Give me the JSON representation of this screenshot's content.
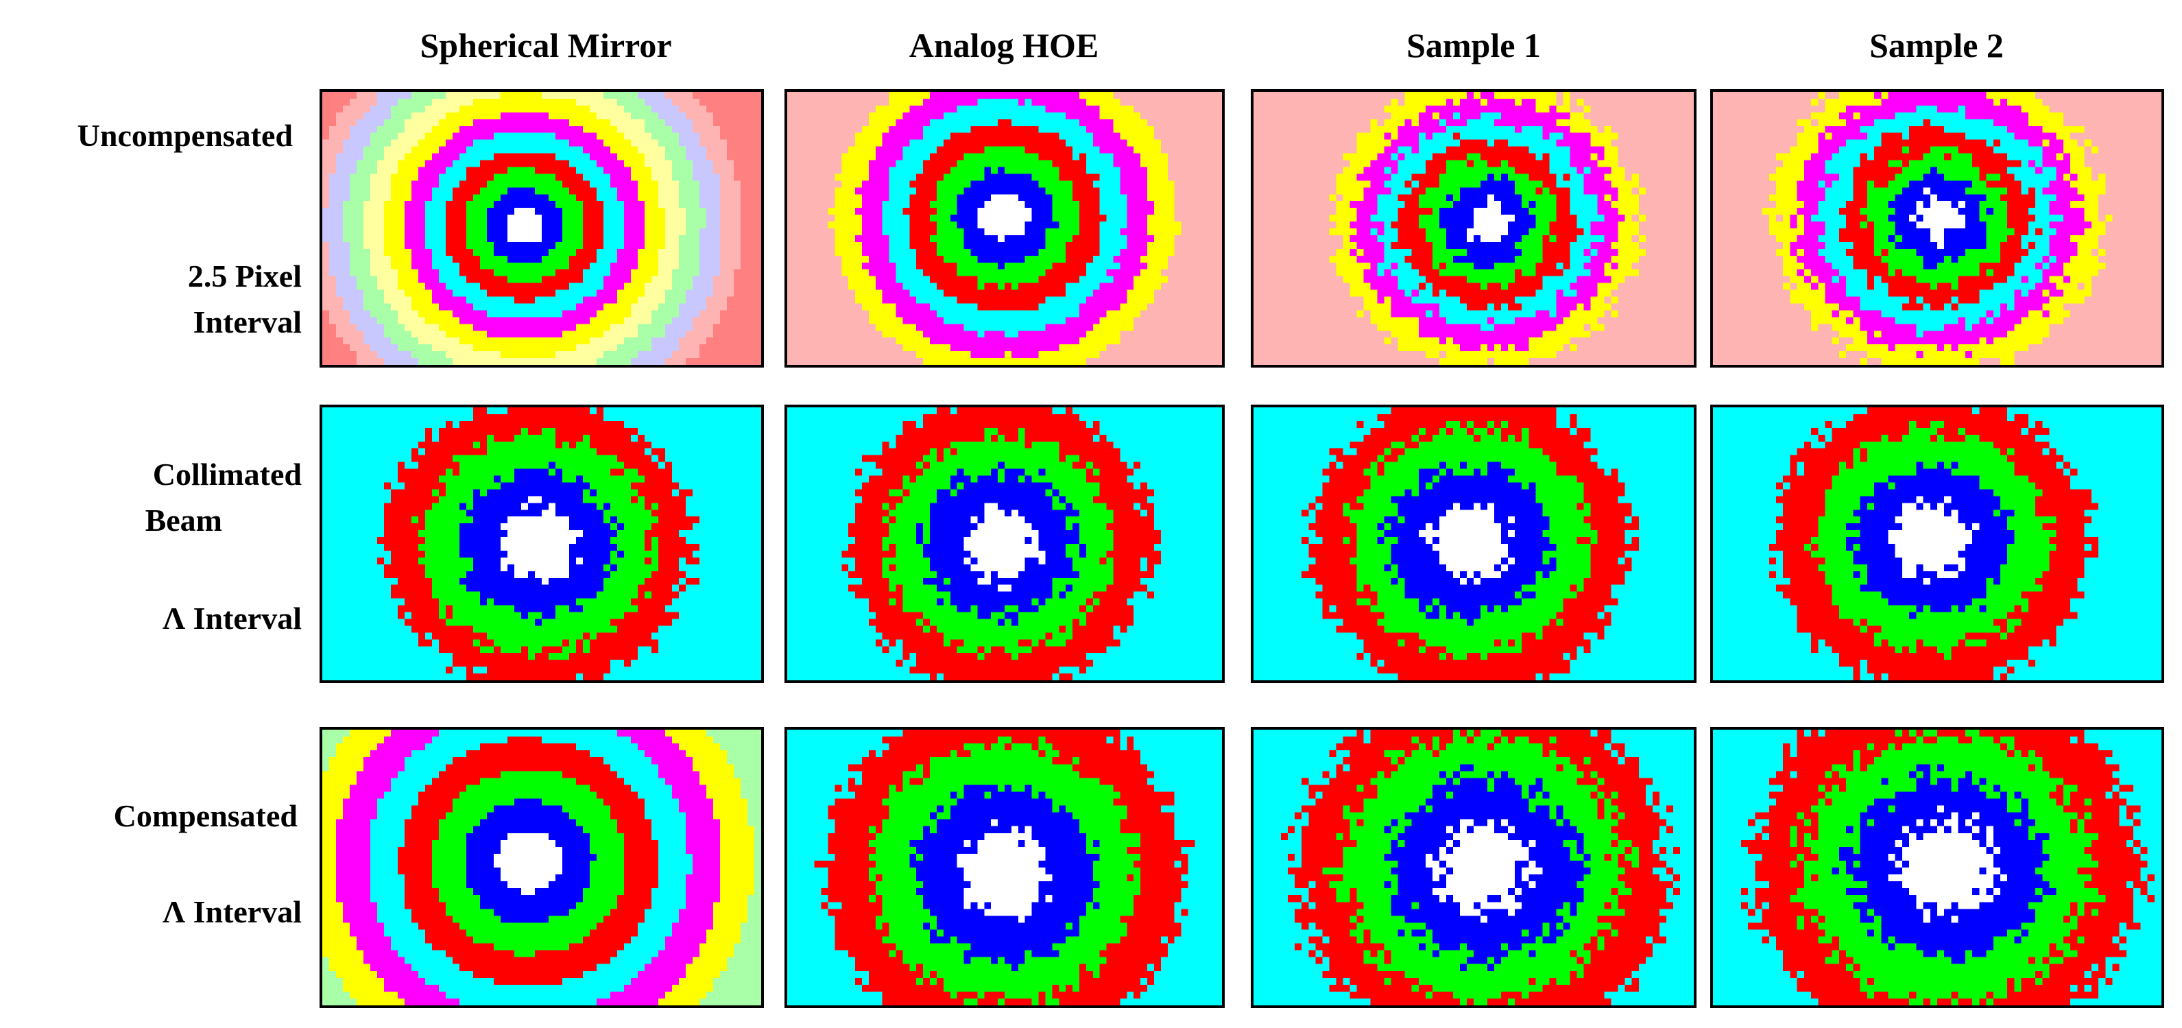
{
  "figure": {
    "columns": [
      "Spherical Mirror",
      "Analog HOE",
      "Sample 1",
      "Sample 2"
    ],
    "rows": [
      {
        "id": "uncompensated",
        "labels": [
          "Uncompensated",
          "2.5 Pixel",
          "Interval"
        ]
      },
      {
        "id": "collimated",
        "labels": [
          "Collimated",
          "Beam",
          "Λ Interval"
        ]
      },
      {
        "id": "compensated",
        "labels": [
          "Compensated",
          "Λ Interval"
        ]
      }
    ]
  },
  "colors": {
    "white": "#ffffff",
    "blue": "#0000ff",
    "green": "#00ff00",
    "red": "#ff0000",
    "cyan": "#00ffff",
    "magenta": "#ff00ff",
    "yellow": "#ffff00",
    "light_yellow": "#ffffa0",
    "pale_green": "#a8ffa8",
    "pale_blue": "#c8c8ff",
    "pink": "#ffb4b4",
    "salmon": "#ff8080"
  }
}
